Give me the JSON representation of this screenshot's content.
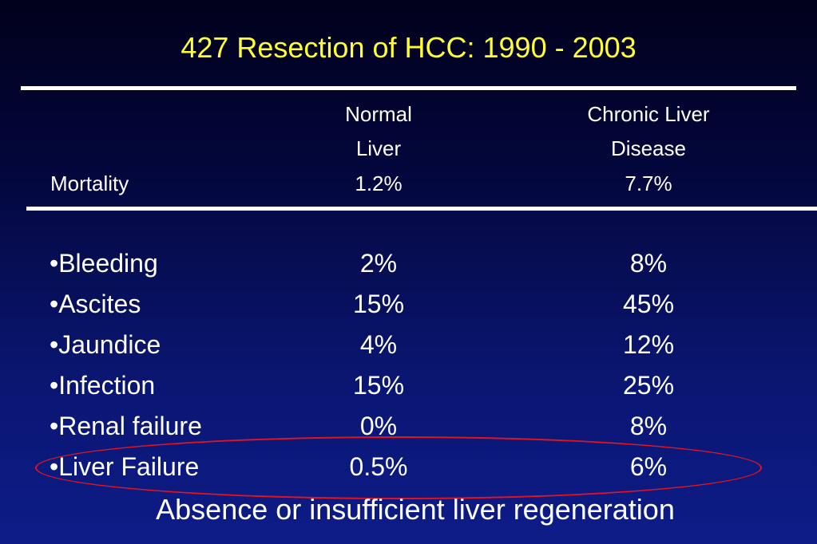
{
  "slide": {
    "title": "427 Resection of HCC: 1990 - 2003",
    "footer": "Absence or insufficient  liver regeneration",
    "colors": {
      "title": "#ffff33",
      "text": "#ffffff",
      "background_top": "#01011c",
      "background_bottom": "#0d1c88",
      "highlight_ellipse": "#e4141e"
    }
  },
  "table": {
    "columns": {
      "normal": [
        "Normal",
        "Liver"
      ],
      "chronic": [
        "Chronic Liver",
        "Disease"
      ]
    },
    "mortality": {
      "label": "Mortality",
      "normal": "1.2%",
      "chronic": "7.7%"
    },
    "rows": [
      {
        "label": "•Bleeding",
        "normal": "2%",
        "chronic": "8%"
      },
      {
        "label": "•Ascites",
        "normal": "15%",
        "chronic": "45%"
      },
      {
        "label": "•Jaundice",
        "normal": "4%",
        "chronic": "12%"
      },
      {
        "label": "•Infection",
        "normal": "15%",
        "chronic": "25%"
      },
      {
        "label": "•Renal failure",
        "normal": "0%",
        "chronic": "8%"
      },
      {
        "label": "•Liver Failure",
        "normal": "0.5%",
        "chronic": "6%"
      }
    ]
  }
}
